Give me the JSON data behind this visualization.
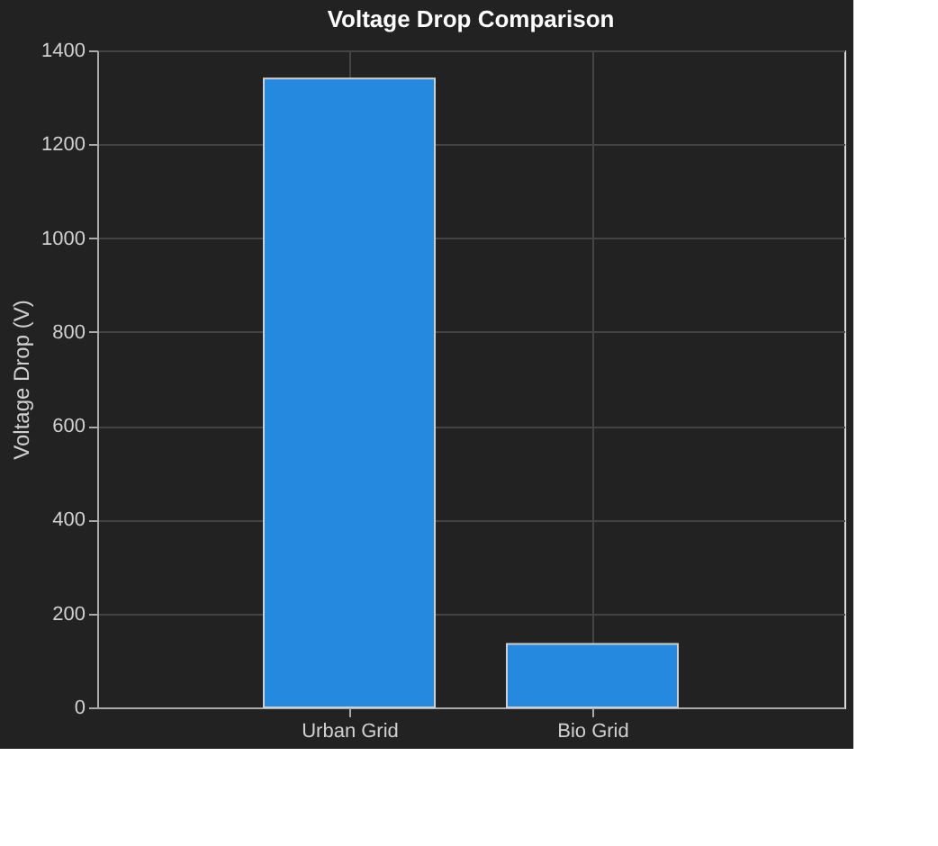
{
  "chart_data": {
    "type": "bar",
    "title": "Voltage Drop Comparison",
    "ylabel": "Voltage Drop (V)",
    "categories": [
      "Urban Grid",
      "Bio Grid"
    ],
    "values": [
      1340,
      135
    ],
    "color": "#2589e0",
    "ylim": [
      0,
      1400
    ],
    "yticks": [
      0,
      200,
      400,
      600,
      800,
      1000,
      1200,
      1400
    ],
    "grid": true
  }
}
